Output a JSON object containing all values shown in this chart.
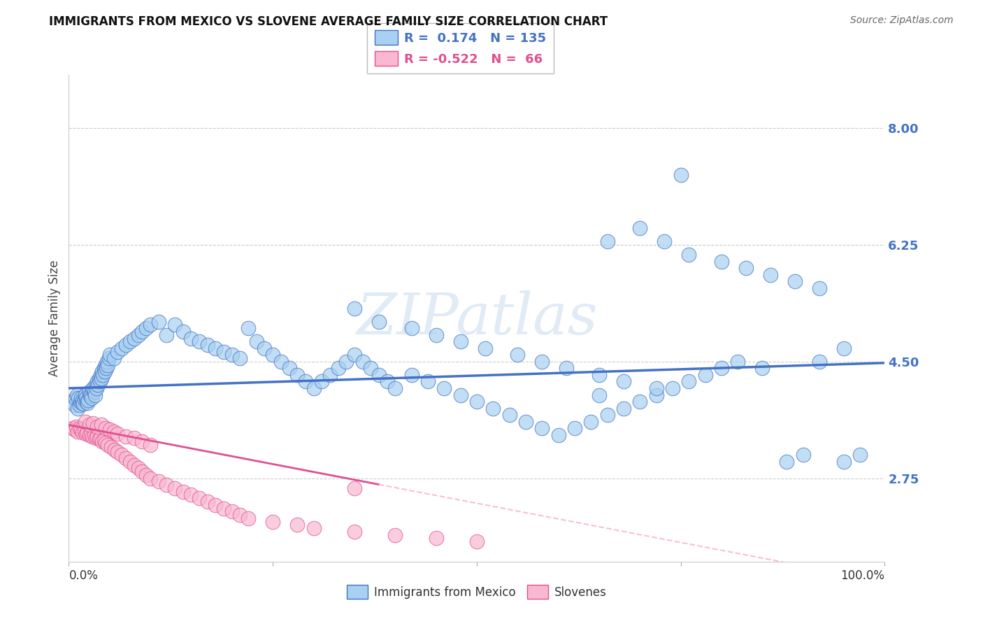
{
  "title": "IMMIGRANTS FROM MEXICO VS SLOVENE AVERAGE FAMILY SIZE CORRELATION CHART",
  "source": "Source: ZipAtlas.com",
  "ylabel": "Average Family Size",
  "legend_label1": "Immigrants from Mexico",
  "legend_label2": "Slovenes",
  "r1": "0.174",
  "n1": "135",
  "r2": "-0.522",
  "n2": "66",
  "ytick_labels": [
    "2.75",
    "4.50",
    "6.25",
    "8.00"
  ],
  "ytick_values": [
    2.75,
    4.5,
    6.25,
    8.0
  ],
  "ylim": [
    1.5,
    8.8
  ],
  "xlim": [
    0.0,
    1.0
  ],
  "color_blue_fill": "#A8D0F0",
  "color_blue_edge": "#4472C4",
  "color_blue_line": "#4472C4",
  "color_pink_fill": "#F9B8D0",
  "color_pink_edge": "#E05090",
  "color_pink_line": "#E05090",
  "color_grid": "#CCCCCC",
  "watermark": "ZIPatlas",
  "title_fontsize": 12,
  "source_fontsize": 10,
  "blue_scatter_x": [
    0.005,
    0.007,
    0.008,
    0.01,
    0.011,
    0.012,
    0.013,
    0.014,
    0.015,
    0.016,
    0.017,
    0.018,
    0.019,
    0.02,
    0.021,
    0.022,
    0.023,
    0.024,
    0.025,
    0.026,
    0.027,
    0.028,
    0.029,
    0.03,
    0.031,
    0.032,
    0.033,
    0.034,
    0.035,
    0.036,
    0.037,
    0.038,
    0.039,
    0.04,
    0.041,
    0.042,
    0.043,
    0.044,
    0.045,
    0.046,
    0.047,
    0.048,
    0.049,
    0.05,
    0.055,
    0.06,
    0.065,
    0.07,
    0.075,
    0.08,
    0.085,
    0.09,
    0.095,
    0.1,
    0.11,
    0.12,
    0.13,
    0.14,
    0.15,
    0.16,
    0.17,
    0.18,
    0.19,
    0.2,
    0.21,
    0.22,
    0.23,
    0.24,
    0.25,
    0.26,
    0.27,
    0.28,
    0.29,
    0.3,
    0.31,
    0.32,
    0.33,
    0.34,
    0.35,
    0.36,
    0.37,
    0.38,
    0.39,
    0.4,
    0.42,
    0.44,
    0.46,
    0.48,
    0.5,
    0.52,
    0.54,
    0.56,
    0.58,
    0.6,
    0.62,
    0.64,
    0.65,
    0.66,
    0.68,
    0.7,
    0.72,
    0.74,
    0.76,
    0.78,
    0.8,
    0.82,
    0.85,
    0.88,
    0.9,
    0.92,
    0.95,
    0.97,
    0.35,
    0.38,
    0.42,
    0.45,
    0.48,
    0.51,
    0.55,
    0.58,
    0.61,
    0.65,
    0.68,
    0.72,
    0.75,
    0.66,
    0.7,
    0.73,
    0.76,
    0.8,
    0.83,
    0.86,
    0.89,
    0.92,
    0.95
  ],
  "blue_scatter_y": [
    3.9,
    3.85,
    3.95,
    4.0,
    3.8,
    3.95,
    3.85,
    3.9,
    3.95,
    3.88,
    3.92,
    3.87,
    3.93,
    4.0,
    3.95,
    3.9,
    3.88,
    3.92,
    4.05,
    3.98,
    4.02,
    3.95,
    4.08,
    4.1,
    4.05,
    4.0,
    4.15,
    4.1,
    4.2,
    4.15,
    4.25,
    4.2,
    4.3,
    4.25,
    4.35,
    4.3,
    4.4,
    4.35,
    4.45,
    4.4,
    4.5,
    4.45,
    4.55,
    4.6,
    4.55,
    4.65,
    4.7,
    4.75,
    4.8,
    4.85,
    4.9,
    4.95,
    5.0,
    5.05,
    5.1,
    4.9,
    5.05,
    4.95,
    4.85,
    4.8,
    4.75,
    4.7,
    4.65,
    4.6,
    4.55,
    5.0,
    4.8,
    4.7,
    4.6,
    4.5,
    4.4,
    4.3,
    4.2,
    4.1,
    4.2,
    4.3,
    4.4,
    4.5,
    4.6,
    4.5,
    4.4,
    4.3,
    4.2,
    4.1,
    4.3,
    4.2,
    4.1,
    4.0,
    3.9,
    3.8,
    3.7,
    3.6,
    3.5,
    3.4,
    3.5,
    3.6,
    4.0,
    3.7,
    3.8,
    3.9,
    4.0,
    4.1,
    4.2,
    4.3,
    4.4,
    4.5,
    4.4,
    3.0,
    3.1,
    4.5,
    3.0,
    3.1,
    5.3,
    5.1,
    5.0,
    4.9,
    4.8,
    4.7,
    4.6,
    4.5,
    4.4,
    4.3,
    4.2,
    4.1,
    7.3,
    6.3,
    6.5,
    6.3,
    6.1,
    6.0,
    5.9,
    5.8,
    5.7,
    5.6,
    4.7
  ],
  "pink_scatter_x": [
    0.005,
    0.007,
    0.009,
    0.011,
    0.013,
    0.015,
    0.017,
    0.019,
    0.021,
    0.023,
    0.025,
    0.027,
    0.029,
    0.031,
    0.033,
    0.035,
    0.037,
    0.039,
    0.041,
    0.043,
    0.045,
    0.048,
    0.052,
    0.056,
    0.06,
    0.065,
    0.07,
    0.075,
    0.08,
    0.085,
    0.09,
    0.095,
    0.1,
    0.11,
    0.12,
    0.13,
    0.14,
    0.15,
    0.16,
    0.17,
    0.18,
    0.19,
    0.2,
    0.21,
    0.22,
    0.25,
    0.28,
    0.3,
    0.35,
    0.4,
    0.45,
    0.5,
    0.02,
    0.025,
    0.03,
    0.035,
    0.04,
    0.045,
    0.05,
    0.055,
    0.06,
    0.07,
    0.08,
    0.09,
    0.1,
    0.35
  ],
  "pink_scatter_y": [
    3.5,
    3.48,
    3.52,
    3.45,
    3.5,
    3.48,
    3.44,
    3.46,
    3.42,
    3.44,
    3.4,
    3.42,
    3.38,
    3.4,
    3.36,
    3.38,
    3.34,
    3.36,
    3.3,
    3.32,
    3.28,
    3.25,
    3.22,
    3.18,
    3.15,
    3.1,
    3.05,
    3.0,
    2.95,
    2.9,
    2.85,
    2.8,
    2.75,
    2.7,
    2.65,
    2.6,
    2.55,
    2.5,
    2.45,
    2.4,
    2.35,
    2.3,
    2.25,
    2.2,
    2.15,
    2.1,
    2.05,
    2.0,
    1.95,
    1.9,
    1.85,
    1.8,
    3.6,
    3.55,
    3.58,
    3.52,
    3.55,
    3.5,
    3.48,
    3.45,
    3.42,
    3.38,
    3.35,
    3.3,
    3.25,
    2.6
  ]
}
